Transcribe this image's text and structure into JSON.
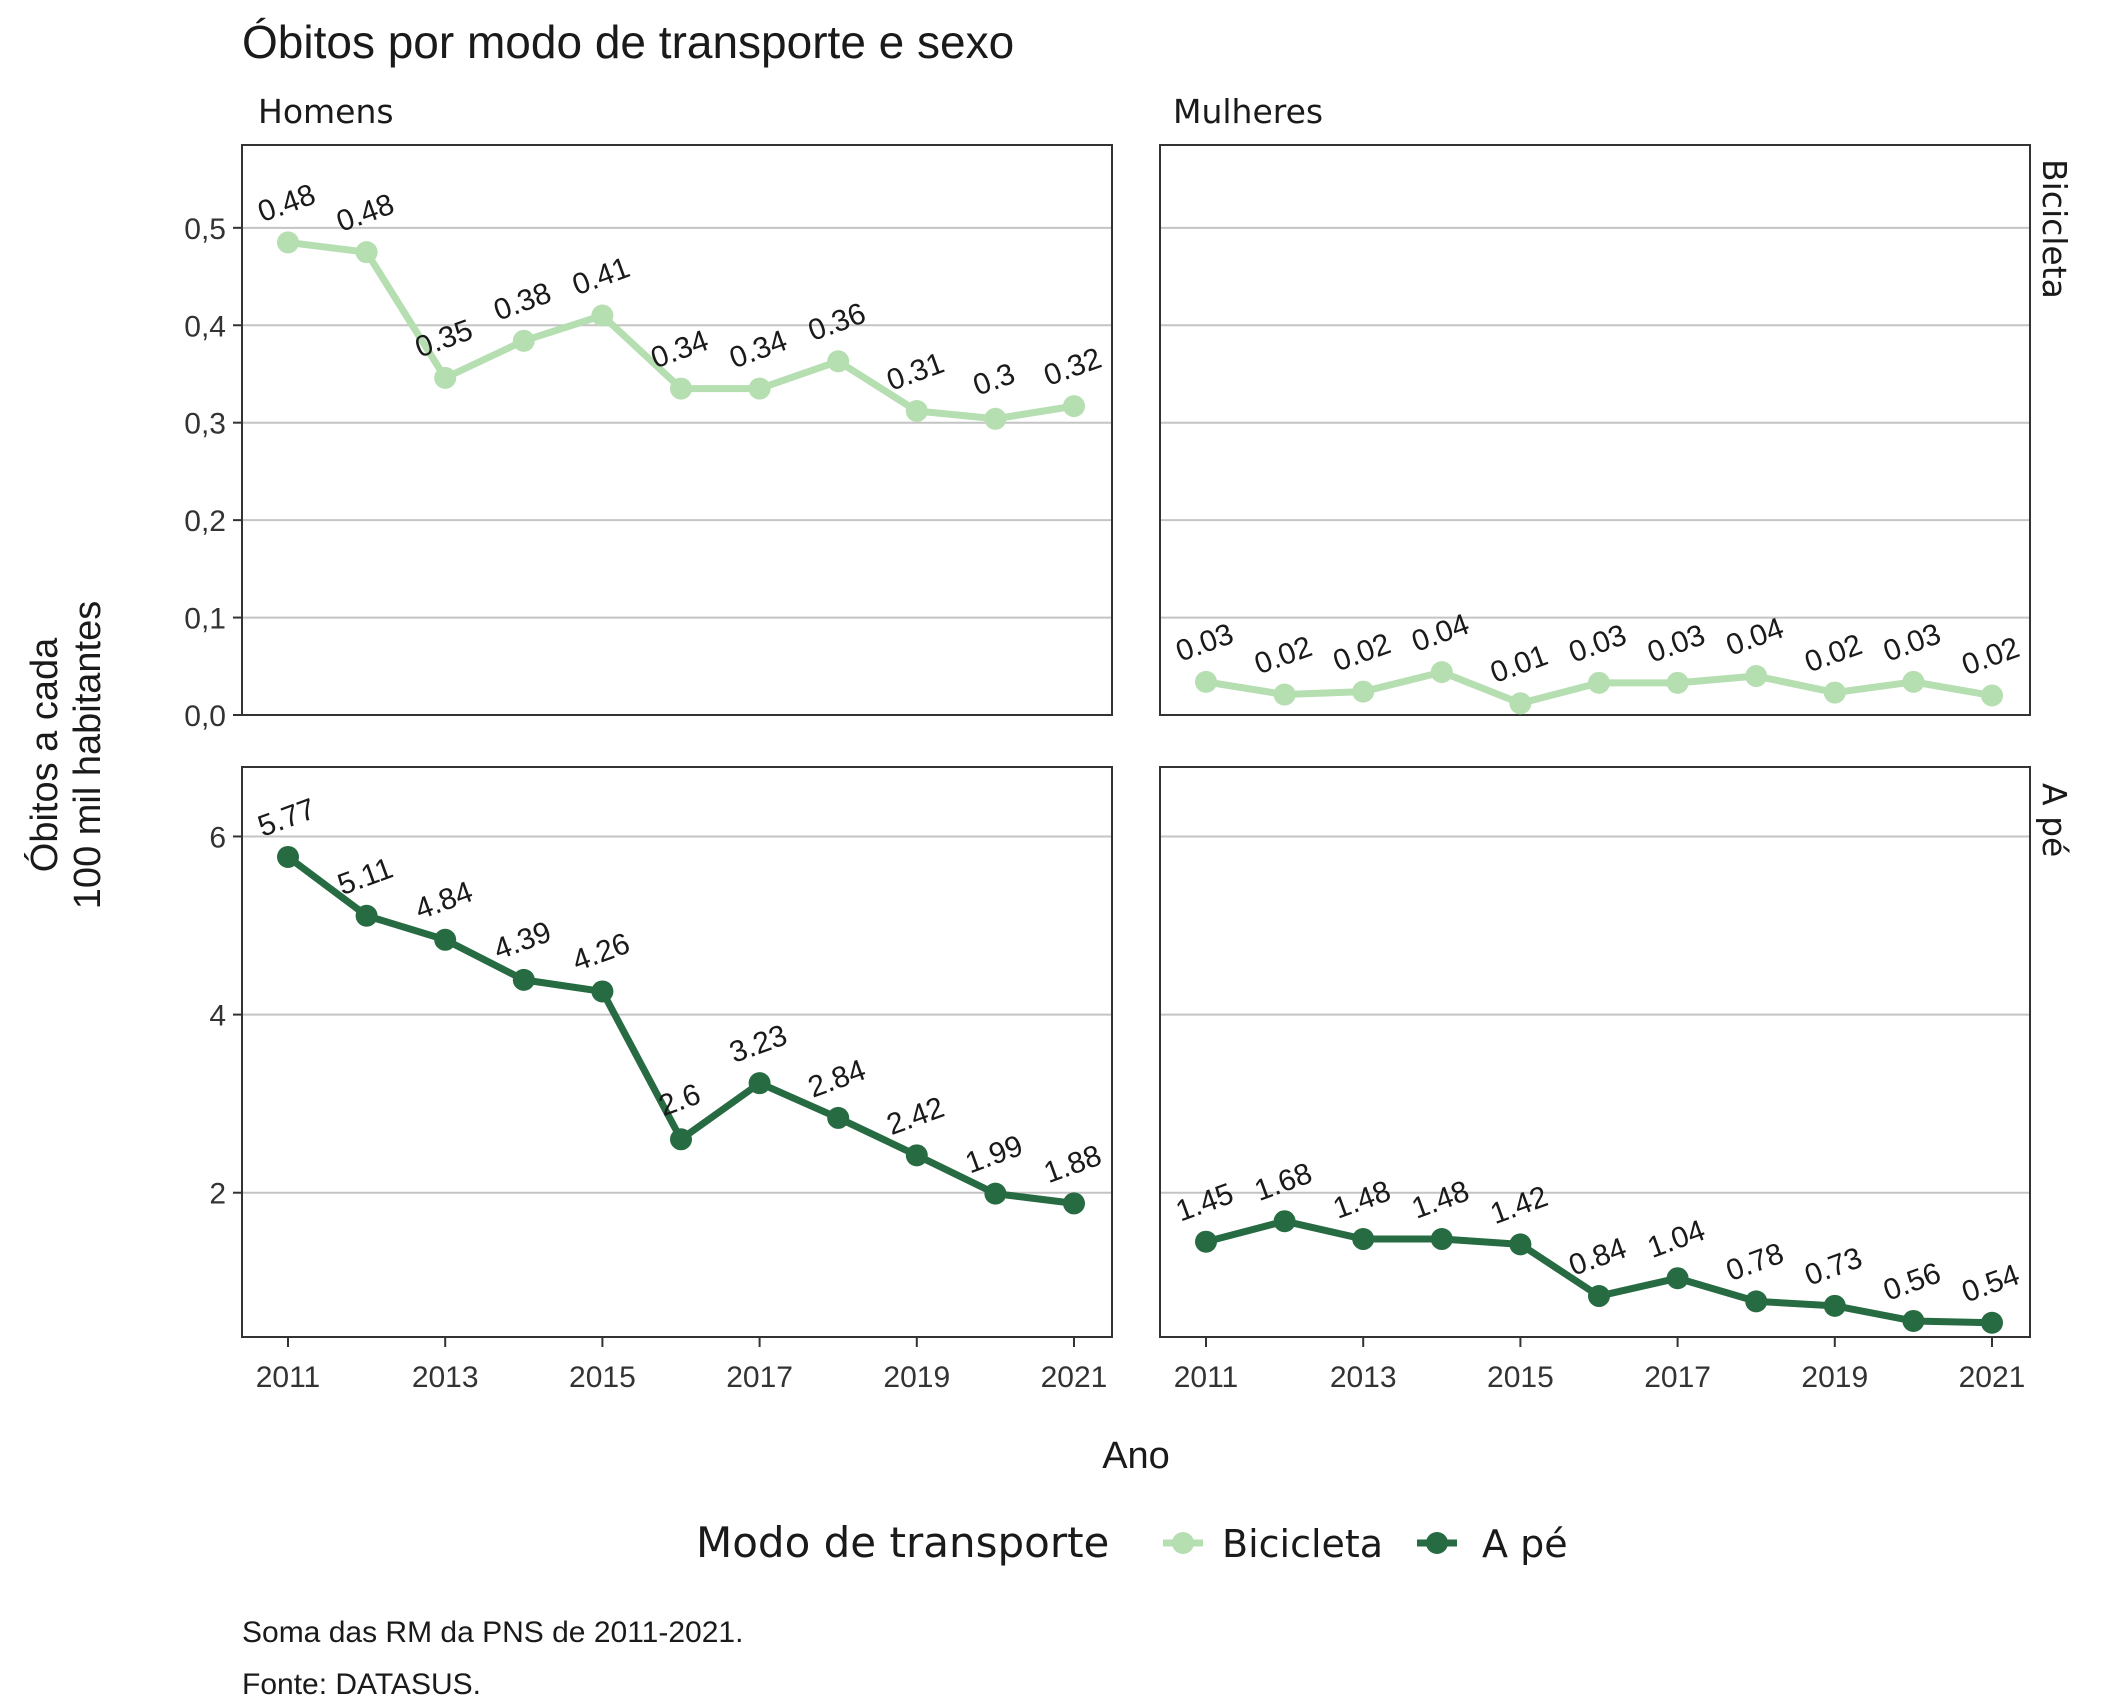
{
  "chart_data": {
    "type": "line",
    "title": "Óbitos por modo de transporte e sexo",
    "xlabel": "Ano",
    "ylabel_line1": "Óbitos a cada",
    "ylabel_line2": "100 mil habitantes",
    "columns": [
      "Homens",
      "Mulheres"
    ],
    "rows": [
      "Bicicleta",
      "A pé"
    ],
    "x": [
      2011,
      2012,
      2013,
      2014,
      2015,
      2016,
      2017,
      2018,
      2019,
      2020,
      2021
    ],
    "x_tick_labels": [
      "2011",
      "2013",
      "2015",
      "2017",
      "2019",
      "2021"
    ],
    "facets": [
      {
        "column": "Homens",
        "row": "Bicicleta",
        "series": "Bicicleta",
        "values": [
          0.485,
          0.475,
          0.346,
          0.384,
          0.41,
          0.335,
          0.335,
          0.363,
          0.312,
          0.304,
          0.317
        ],
        "labels": [
          "0.48",
          "0.48",
          "0.35",
          "0.38",
          "0.41",
          "0.34",
          "0.34",
          "0.36",
          "0.31",
          "0.3",
          "0.32"
        ]
      },
      {
        "column": "Mulheres",
        "row": "Bicicleta",
        "series": "Bicicleta",
        "values": [
          0.034,
          0.021,
          0.024,
          0.044,
          0.012,
          0.033,
          0.033,
          0.04,
          0.023,
          0.034,
          0.02
        ],
        "labels": [
          "0.03",
          "0.02",
          "0.02",
          "0.04",
          "0.01",
          "0.03",
          "0.03",
          "0.04",
          "0.02",
          "0.03",
          "0.02"
        ]
      },
      {
        "column": "Homens",
        "row": "A pé",
        "series": "A pé",
        "values": [
          5.77,
          5.11,
          4.84,
          4.39,
          4.26,
          2.6,
          3.23,
          2.84,
          2.42,
          1.99,
          1.88
        ],
        "labels": [
          "5.77",
          "5.11",
          "4.84",
          "4.39",
          "4.26",
          "2.6",
          "3.23",
          "2.84",
          "2.42",
          "1.99",
          "1.88"
        ]
      },
      {
        "column": "Mulheres",
        "row": "A pé",
        "series": "A pé",
        "values": [
          1.45,
          1.68,
          1.48,
          1.48,
          1.42,
          0.84,
          1.04,
          0.78,
          0.73,
          0.56,
          0.54
        ],
        "labels": [
          "1.45",
          "1.68",
          "1.48",
          "1.48",
          "1.42",
          "0.84",
          "1.04",
          "0.78",
          "0.73",
          "0.56",
          "0.54"
        ]
      }
    ],
    "y_axes": {
      "Bicicleta": {
        "ylim": [
          0,
          0.585
        ],
        "ticks": [
          0,
          0.1,
          0.2,
          0.3,
          0.4,
          0.5
        ],
        "tick_labels": [
          "0,0",
          "0,1",
          "0,2",
          "0,3",
          "0,4",
          "0,5"
        ]
      },
      "A pé": {
        "ylim": [
          0.38,
          6.78
        ],
        "ticks": [
          2,
          4,
          6
        ],
        "tick_labels": [
          "2",
          "4",
          "6"
        ]
      }
    },
    "legend": {
      "title": "Modo de transporte",
      "position": "bottom",
      "items": [
        {
          "name": "Bicicleta",
          "color": "#b5deb1"
        },
        {
          "name": "A pé",
          "color": "#276b42"
        }
      ]
    },
    "grid": "horizontal",
    "caption_line1": "Soma das RM da PNS de 2011-2021.",
    "caption_line2": "Fonte: DATASUS."
  }
}
